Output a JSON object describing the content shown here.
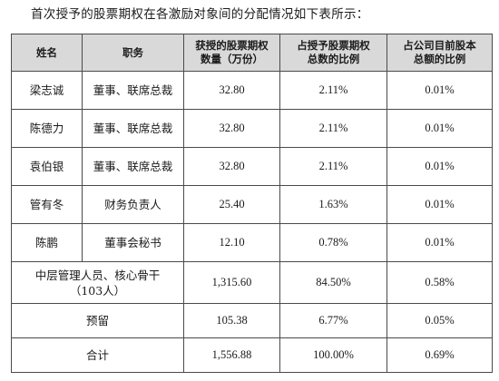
{
  "intro_text": "首次授予的股票期权在各激励对象间的分配情况如下表所示：",
  "table": {
    "headers": {
      "name": "姓名",
      "position": "职务",
      "options_line1": "获授的股票期权",
      "options_line2": "数量（万份）",
      "pct_granted_line1": "占授予股票期权",
      "pct_granted_line2": "总数的比例",
      "pct_capital_line1": "占公司目前股本",
      "pct_capital_line2": "总额的比例"
    },
    "rows": [
      {
        "name": "梁志诚",
        "position": "董事、联席总裁",
        "options": "32.80",
        "pct_granted": "2.11%",
        "pct_capital": "0.01%"
      },
      {
        "name": "陈德力",
        "position": "董事、联席总裁",
        "options": "32.80",
        "pct_granted": "2.11%",
        "pct_capital": "0.01%"
      },
      {
        "name": "袁伯银",
        "position": "董事、联席总裁",
        "options": "32.80",
        "pct_granted": "2.11%",
        "pct_capital": "0.01%"
      },
      {
        "name": "管有冬",
        "position": "财务负责人",
        "options": "25.40",
        "pct_granted": "1.63%",
        "pct_capital": "0.01%"
      },
      {
        "name": "陈鹏",
        "position": "董事会秘书",
        "options": "12.10",
        "pct_granted": "0.78%",
        "pct_capital": "0.01%"
      }
    ],
    "middle_mgmt": {
      "label_line1": "中层管理人员、核心骨干",
      "label_line2": "（103人）",
      "options": "1,315.60",
      "pct_granted": "84.50%",
      "pct_capital": "0.58%"
    },
    "reserved": {
      "label": "预留",
      "options": "105.38",
      "pct_granted": "6.77%",
      "pct_capital": "0.05%"
    },
    "total": {
      "label": "合计",
      "options": "1,556.88",
      "pct_granted": "100.00%",
      "pct_capital": "0.69%"
    }
  }
}
